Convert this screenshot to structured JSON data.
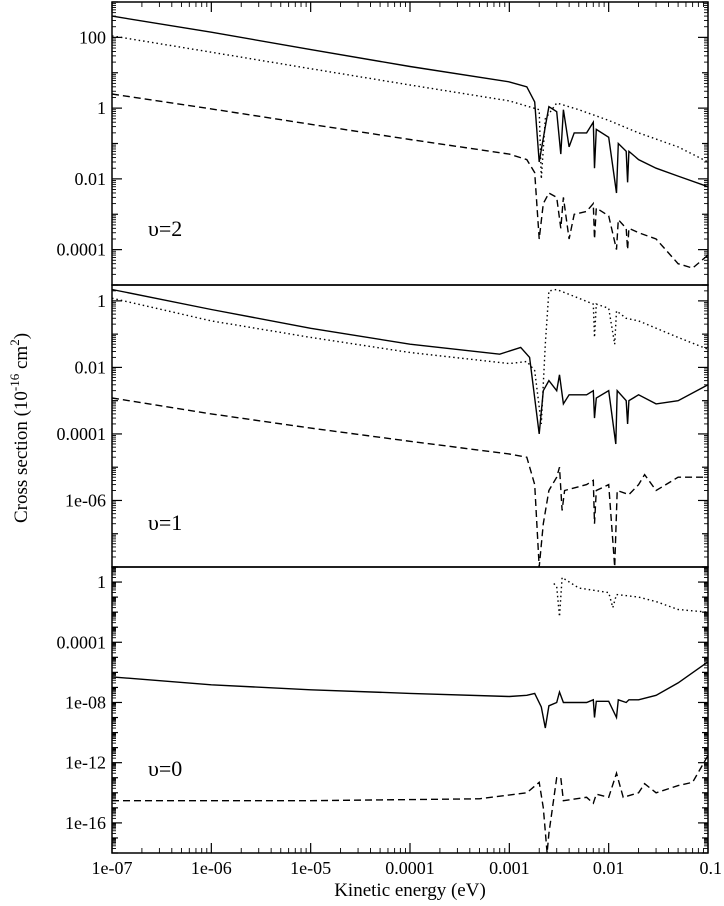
{
  "chart_data": {
    "type": "line",
    "xlabel": "Kinetic energy (eV)",
    "ylabel": "Cross section (10^-16 cm^2)",
    "ylabel_parts": {
      "pre": "Cross section (10",
      "exp1": "-16",
      "mid": " cm",
      "exp2": "2",
      "post": ")"
    },
    "xscale": "log",
    "yscale": "log",
    "xlim": [
      1e-07,
      0.1
    ],
    "x_ticks": [
      "1e-07",
      "1e-06",
      "1e-05",
      "0.0001",
      "0.001",
      "0.01",
      "0.1"
    ],
    "panels": [
      {
        "label": "υ=2",
        "ylim": [
          1e-05,
          1000
        ],
        "y_ticks": [
          "0.0001",
          "0.01",
          "1",
          "100"
        ],
        "y_tick_values": [
          0.0001,
          0.01,
          1,
          100
        ],
        "series": [
          {
            "style": "solid",
            "points": [
              [
                1e-07,
                400
              ],
              [
                1e-06,
                140
              ],
              [
                1e-05,
                45
              ],
              [
                0.0001,
                15
              ],
              [
                0.001,
                5.5
              ],
              [
                0.0015,
                4
              ],
              [
                0.0018,
                1.5
              ],
              [
                0.002,
                0.03
              ],
              [
                0.0023,
                0.3
              ],
              [
                0.0025,
                1.1
              ],
              [
                0.003,
                0.8
              ],
              [
                0.0033,
                0.05
              ],
              [
                0.0035,
                0.9
              ],
              [
                0.004,
                0.08
              ],
              [
                0.0045,
                0.2
              ],
              [
                0.006,
                0.2
              ],
              [
                0.007,
                0.4
              ],
              [
                0.0072,
                0.02
              ],
              [
                0.0075,
                0.25
              ],
              [
                0.01,
                0.15
              ],
              [
                0.012,
                0.004
              ],
              [
                0.0125,
                0.1
              ],
              [
                0.015,
                0.06
              ],
              [
                0.0155,
                0.008
              ],
              [
                0.016,
                0.06
              ],
              [
                0.02,
                0.035
              ],
              [
                0.03,
                0.02
              ],
              [
                0.05,
                0.012
              ],
              [
                0.1,
                0.006
              ]
            ]
          },
          {
            "style": "dotted",
            "points": [
              [
                1e-07,
                110
              ],
              [
                1e-06,
                38
              ],
              [
                1e-05,
                13
              ],
              [
                0.0001,
                4.5
              ],
              [
                0.001,
                1.6
              ],
              [
                0.002,
                0.9
              ],
              [
                0.0021,
                0.01
              ],
              [
                0.0023,
                0.5
              ],
              [
                0.003,
                1.4
              ],
              [
                0.005,
                0.9
              ],
              [
                0.01,
                0.45
              ],
              [
                0.02,
                0.2
              ],
              [
                0.05,
                0.08
              ],
              [
                0.1,
                0.03
              ]
            ]
          },
          {
            "style": "dashed",
            "points": [
              [
                1e-07,
                2.5
              ],
              [
                1e-06,
                0.95
              ],
              [
                1e-05,
                0.35
              ],
              [
                0.0001,
                0.13
              ],
              [
                0.001,
                0.05
              ],
              [
                0.0015,
                0.035
              ],
              [
                0.0018,
                0.015
              ],
              [
                0.002,
                0.0002
              ],
              [
                0.0022,
                0.002
              ],
              [
                0.0025,
                0.004
              ],
              [
                0.003,
                0.003
              ],
              [
                0.0033,
                0.0004
              ],
              [
                0.0035,
                0.003
              ],
              [
                0.004,
                0.0002
              ],
              [
                0.0045,
                0.001
              ],
              [
                0.006,
                0.0012
              ],
              [
                0.007,
                0.002
              ],
              [
                0.0072,
                0.0002
              ],
              [
                0.0075,
                0.0015
              ],
              [
                0.01,
                0.0009
              ],
              [
                0.012,
                0.0001
              ],
              [
                0.0125,
                0.0007
              ],
              [
                0.015,
                0.0004
              ],
              [
                0.0155,
                0.0001
              ],
              [
                0.016,
                0.0004
              ],
              [
                0.02,
                0.0003
              ],
              [
                0.03,
                0.0002
              ],
              [
                0.05,
                4e-05
              ],
              [
                0.07,
                3e-05
              ],
              [
                0.1,
                7e-05
              ]
            ]
          }
        ]
      },
      {
        "label": "υ=1",
        "ylim": [
          1e-08,
          3
        ],
        "y_ticks": [
          "1e-06",
          "0.0001",
          "0.01",
          "1"
        ],
        "y_tick_values": [
          1e-06,
          0.0001,
          0.01,
          1
        ],
        "series": [
          {
            "style": "solid",
            "points": [
              [
                1e-07,
                2.2
              ],
              [
                1e-06,
                0.55
              ],
              [
                1e-05,
                0.15
              ],
              [
                0.0001,
                0.05
              ],
              [
                0.0008,
                0.025
              ],
              [
                0.0013,
                0.04
              ],
              [
                0.0016,
                0.02
              ],
              [
                0.002,
                0.0001
              ],
              [
                0.0022,
                0.002
              ],
              [
                0.0025,
                0.004
              ],
              [
                0.003,
                0.002
              ],
              [
                0.0032,
                0.006
              ],
              [
                0.0035,
                0.0008
              ],
              [
                0.004,
                0.0015
              ],
              [
                0.006,
                0.0015
              ],
              [
                0.007,
                0.002
              ],
              [
                0.0072,
                0.0003
              ],
              [
                0.0075,
                0.0012
              ],
              [
                0.01,
                0.002
              ],
              [
                0.0118,
                5e-05
              ],
              [
                0.0122,
                0.002
              ],
              [
                0.015,
                0.001
              ],
              [
                0.0155,
                0.0002
              ],
              [
                0.016,
                0.001
              ],
              [
                0.02,
                0.0015
              ],
              [
                0.03,
                0.0008
              ],
              [
                0.05,
                0.001
              ],
              [
                0.1,
                0.003
              ]
            ]
          },
          {
            "style": "dotted",
            "points": [
              [
                1e-07,
                1.2
              ],
              [
                1e-06,
                0.25
              ],
              [
                1e-05,
                0.08
              ],
              [
                0.0001,
                0.028
              ],
              [
                0.001,
                0.013
              ],
              [
                0.0015,
                0.015
              ],
              [
                0.0018,
                0.008
              ],
              [
                0.0021,
                0.0002
              ],
              [
                0.0023,
                0.05
              ],
              [
                0.0025,
                2
              ],
              [
                0.003,
                2.2
              ],
              [
                0.005,
                1.2
              ],
              [
                0.007,
                0.8
              ],
              [
                0.0072,
                0.08
              ],
              [
                0.0075,
                0.8
              ],
              [
                0.01,
                0.6
              ],
              [
                0.0115,
                0.05
              ],
              [
                0.012,
                0.5
              ],
              [
                0.015,
                0.3
              ],
              [
                0.02,
                0.25
              ],
              [
                0.05,
                0.08
              ],
              [
                0.1,
                0.035
              ]
            ]
          },
          {
            "style": "dashed",
            "points": [
              [
                1e-07,
                0.0012
              ],
              [
                1e-06,
                0.0004
              ],
              [
                1e-05,
                0.00015
              ],
              [
                0.0001,
                6e-05
              ],
              [
                0.001,
                2.5e-05
              ],
              [
                0.0015,
                2e-05
              ],
              [
                0.0018,
                3e-06
              ],
              [
                0.002,
                1e-08
              ],
              [
                0.0022,
                2e-07
              ],
              [
                0.0025,
                2e-06
              ],
              [
                0.003,
                5e-06
              ],
              [
                0.0032,
                1e-05
              ],
              [
                0.0034,
                5e-07
              ],
              [
                0.0036,
                2e-06
              ],
              [
                0.006,
                3e-06
              ],
              [
                0.007,
                4e-06
              ],
              [
                0.0072,
                2e-07
              ],
              [
                0.0075,
                2e-06
              ],
              [
                0.01,
                3e-06
              ],
              [
                0.0115,
                1e-08
              ],
              [
                0.0122,
                2e-06
              ],
              [
                0.016,
                1.5e-06
              ],
              [
                0.02,
                3e-06
              ],
              [
                0.023,
                6e-06
              ],
              [
                0.03,
                2e-06
              ],
              [
                0.05,
                5e-06
              ],
              [
                0.1,
                5e-06
              ]
            ]
          }
        ]
      },
      {
        "label": "υ=0",
        "ylim": [
          1e-18,
          10
        ],
        "y_ticks": [
          "1e-16",
          "1e-12",
          "1e-08",
          "0.0001",
          "1"
        ],
        "y_tick_values": [
          1e-16,
          1e-12,
          1e-08,
          0.0001,
          1
        ],
        "series": [
          {
            "style": "solid",
            "points": [
              [
                1e-07,
                5e-07
              ],
              [
                1e-06,
                1.5e-07
              ],
              [
                1e-05,
                7e-08
              ],
              [
                0.0001,
                4e-08
              ],
              [
                0.001,
                2.5e-08
              ],
              [
                0.0015,
                3e-08
              ],
              [
                0.0018,
                4e-08
              ],
              [
                0.0021,
                5e-09
              ],
              [
                0.0023,
                2e-10
              ],
              [
                0.0025,
                6e-09
              ],
              [
                0.003,
                1e-08
              ],
              [
                0.0032,
                5e-08
              ],
              [
                0.0035,
                1e-08
              ],
              [
                0.006,
                1e-08
              ],
              [
                0.007,
                1.5e-08
              ],
              [
                0.0072,
                1e-09
              ],
              [
                0.0075,
                1.2e-08
              ],
              [
                0.01,
                1.2e-08
              ],
              [
                0.012,
                1e-09
              ],
              [
                0.0125,
                1.5e-08
              ],
              [
                0.015,
                1e-08
              ],
              [
                0.016,
                1.5e-08
              ],
              [
                0.02,
                1.5e-08
              ],
              [
                0.03,
                3e-08
              ],
              [
                0.05,
                2e-07
              ],
              [
                0.1,
                5e-06
              ]
            ]
          },
          {
            "style": "dotted",
            "points": [
              [
                0.0028,
                0.8
              ],
              [
                0.003,
                0.5
              ],
              [
                0.0032,
                0.005
              ],
              [
                0.0034,
                2
              ],
              [
                0.005,
                0.4
              ],
              [
                0.01,
                0.2
              ],
              [
                0.011,
                0.02
              ],
              [
                0.012,
                0.15
              ],
              [
                0.02,
                0.1
              ],
              [
                0.03,
                0.05
              ],
              [
                0.05,
                0.015
              ],
              [
                0.1,
                0.01
              ]
            ]
          },
          {
            "style": "dashed",
            "points": [
              [
                1e-07,
                3e-15
              ],
              [
                1e-05,
                3e-15
              ],
              [
                0.0005,
                4e-15
              ],
              [
                0.0015,
                1e-14
              ],
              [
                0.002,
                5e-14
              ],
              [
                0.0022,
                1e-15
              ],
              [
                0.0024,
                1e-18
              ],
              [
                0.0025,
                2e-17
              ],
              [
                0.003,
                1e-13
              ],
              [
                0.0033,
                1e-13
              ],
              [
                0.0035,
                3e-15
              ],
              [
                0.006,
                5e-15
              ],
              [
                0.007,
                2e-15
              ],
              [
                0.0075,
                8e-15
              ],
              [
                0.01,
                5e-15
              ],
              [
                0.012,
                2e-13
              ],
              [
                0.014,
                5e-15
              ],
              [
                0.02,
                1e-14
              ],
              [
                0.023,
                4e-14
              ],
              [
                0.03,
                1e-14
              ],
              [
                0.05,
                3e-14
              ],
              [
                0.07,
                5e-14
              ],
              [
                0.1,
                3e-12
              ]
            ]
          }
        ]
      }
    ]
  }
}
